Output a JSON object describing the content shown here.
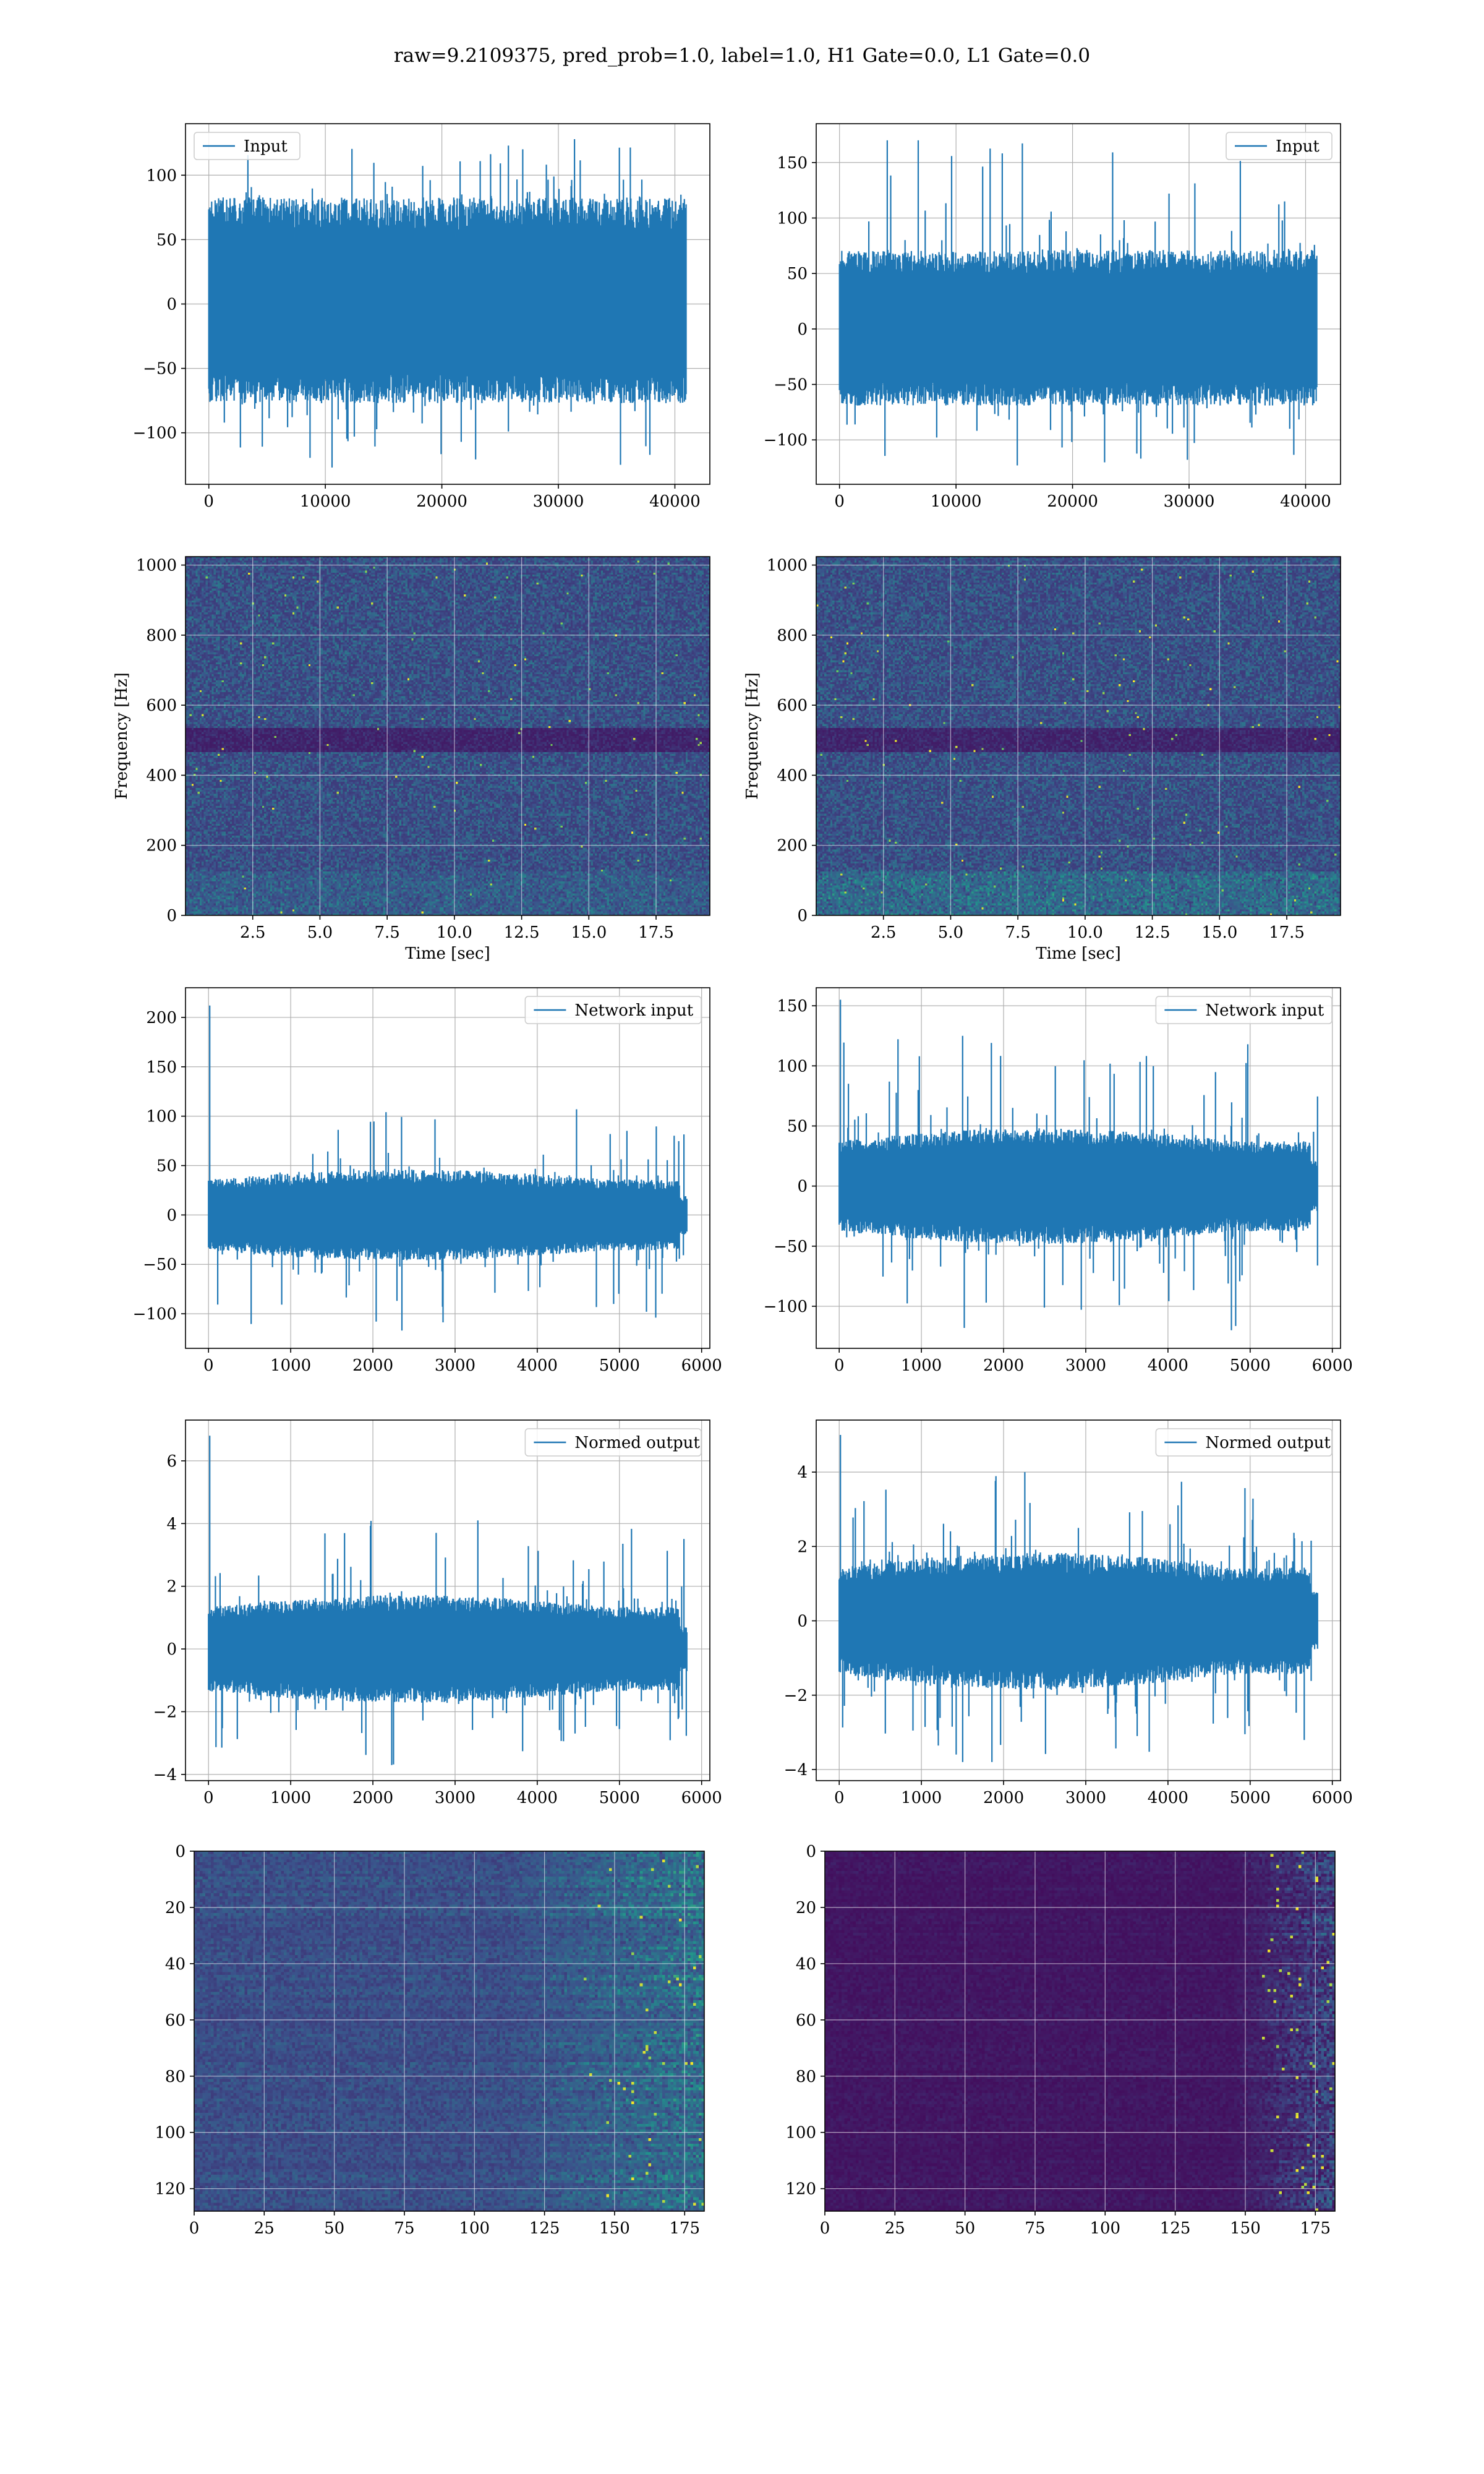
{
  "figure": {
    "title": "raw=9.2109375, pred_prob=1.0, label=1.0, H1 Gate=0.0, L1 Gate=0.0"
  },
  "colors": {
    "line": "#1f77b4",
    "grid": "#b0b0b0",
    "viridis_low": "#440154",
    "viridis_mid": "#21918c",
    "viridis_high": "#fde725"
  },
  "chart_data": [
    {
      "id": "h1-input",
      "type": "line",
      "legend": "Input",
      "legend_loc": "upper-left",
      "xlim": [
        -2000,
        43000
      ],
      "ylim": [
        -140,
        140
      ],
      "xticks": [
        0,
        10000,
        20000,
        30000,
        40000
      ],
      "yticks": [
        -100,
        -50,
        0,
        50,
        100
      ],
      "n": 40960,
      "band": [
        -67,
        72
      ],
      "ymax": 128,
      "ymin": -127,
      "spike": null,
      "grid": true,
      "xlabel": "",
      "ylabel": ""
    },
    {
      "id": "l1-input",
      "type": "line",
      "legend": "Input",
      "legend_loc": "upper-right",
      "xlim": [
        -2000,
        43000
      ],
      "ylim": [
        -140,
        185
      ],
      "xticks": [
        0,
        10000,
        20000,
        30000,
        40000
      ],
      "yticks": [
        -100,
        -50,
        0,
        50,
        100,
        150
      ],
      "n": 40960,
      "band": [
        -60,
        62
      ],
      "ymax": 170,
      "ymin": -123,
      "spike": 170,
      "grid": true,
      "xlabel": "",
      "ylabel": ""
    },
    {
      "id": "h1-spectrogram",
      "type": "heatmap",
      "xlim": [
        0,
        19.5
      ],
      "ylim": [
        0,
        1024
      ],
      "xticks": [
        2.5,
        5.0,
        7.5,
        10.0,
        12.5,
        15.0,
        17.5
      ],
      "yticks": [
        0,
        200,
        400,
        600,
        800,
        1000
      ],
      "xlabel": "Time [sec]",
      "ylabel": "Frequency [Hz]",
      "grid": true
    },
    {
      "id": "l1-spectrogram",
      "type": "heatmap",
      "xlim": [
        0,
        19.5
      ],
      "ylim": [
        0,
        1024
      ],
      "xticks": [
        2.5,
        5.0,
        7.5,
        10.0,
        12.5,
        15.0,
        17.5
      ],
      "yticks": [
        0,
        200,
        400,
        600,
        800,
        1000
      ],
      "xlabel": "Time [sec]",
      "ylabel": "Frequency [Hz]",
      "grid": true
    },
    {
      "id": "h1-network-input",
      "type": "line",
      "legend": "Network input",
      "legend_loc": "upper-right",
      "xlim": [
        -280,
        6100
      ],
      "ylim": [
        -135,
        230
      ],
      "xticks": [
        0,
        1000,
        2000,
        3000,
        4000,
        5000,
        6000
      ],
      "yticks": [
        -100,
        -50,
        0,
        50,
        100,
        150,
        200
      ],
      "n": 5820,
      "band": [
        -40,
        40
      ],
      "ymax": 107,
      "ymin": -117,
      "spike": 212,
      "grid": true,
      "xlabel": "",
      "ylabel": ""
    },
    {
      "id": "l1-network-input",
      "type": "line",
      "legend": "Network input",
      "legend_loc": "upper-right",
      "xlim": [
        -280,
        6100
      ],
      "ylim": [
        -135,
        165
      ],
      "xticks": [
        0,
        1000,
        2000,
        3000,
        4000,
        5000,
        6000
      ],
      "yticks": [
        -100,
        -50,
        0,
        50,
        100,
        150
      ],
      "n": 5820,
      "band": [
        -42,
        42
      ],
      "ymax": 125,
      "ymin": -120,
      "spike": 155,
      "grid": true,
      "xlabel": "",
      "ylabel": ""
    },
    {
      "id": "h1-normed-output",
      "type": "line",
      "legend": "Normed output",
      "legend_loc": "upper-right",
      "xlim": [
        -280,
        6100
      ],
      "ylim": [
        -4.2,
        7.3
      ],
      "xticks": [
        0,
        1000,
        2000,
        3000,
        4000,
        5000,
        6000
      ],
      "yticks": [
        -4,
        -2,
        0,
        2,
        4,
        6
      ],
      "n": 5820,
      "band": [
        -1.5,
        1.5
      ],
      "ymax": 4.1,
      "ymin": -3.7,
      "spike": 6.8,
      "grid": true,
      "xlabel": "",
      "ylabel": ""
    },
    {
      "id": "l1-normed-output",
      "type": "line",
      "legend": "Normed output",
      "legend_loc": "upper-right",
      "xlim": [
        -280,
        6100
      ],
      "ylim": [
        -4.3,
        5.4
      ],
      "xticks": [
        0,
        1000,
        2000,
        3000,
        4000,
        5000,
        6000
      ],
      "yticks": [
        -4,
        -2,
        0,
        2,
        4
      ],
      "n": 5820,
      "band": [
        -1.6,
        1.6
      ],
      "ymax": 4.0,
      "ymin": -3.8,
      "spike": 5.0,
      "grid": true,
      "xlabel": "",
      "ylabel": ""
    },
    {
      "id": "h1-feature-map",
      "type": "heatmap",
      "xlim": [
        0,
        182
      ],
      "ylim": [
        128,
        0
      ],
      "xticks": [
        0,
        25,
        50,
        75,
        100,
        125,
        150,
        175
      ],
      "yticks": [
        0,
        20,
        40,
        60,
        80,
        100,
        120
      ],
      "grid": true,
      "xlabel": "",
      "ylabel": ""
    },
    {
      "id": "l1-feature-map",
      "type": "heatmap",
      "xlim": [
        0,
        182
      ],
      "ylim": [
        128,
        0
      ],
      "xticks": [
        0,
        25,
        50,
        75,
        100,
        125,
        150,
        175
      ],
      "yticks": [
        0,
        20,
        40,
        60,
        80,
        100,
        120
      ],
      "grid": true,
      "xlabel": "",
      "ylabel": ""
    }
  ]
}
